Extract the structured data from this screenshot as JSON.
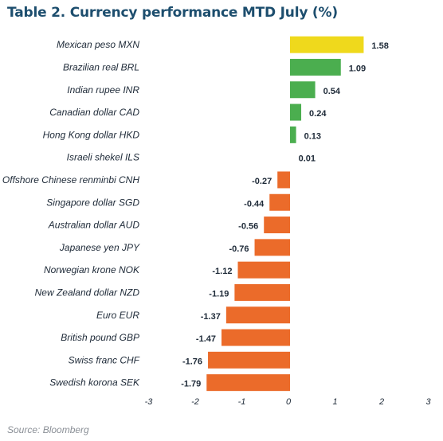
{
  "title": "Table 2. Currency performance MTD July (%)",
  "source": "Source: Bloomberg",
  "colors": {
    "highlight": "#efd91c",
    "positive": "#4bae4f",
    "negative": "#eb6b2a",
    "text": "#1e2a38",
    "title": "#1d4e6e",
    "source": "#8a8f96"
  },
  "chart_data": {
    "type": "bar",
    "orientation": "horizontal",
    "categories": [
      "Mexican peso MXN",
      "Brazilian real BRL",
      "Indian rupee INR",
      "Canadian dollar CAD",
      "Hong Kong dollar HKD",
      "Israeli shekel ILS",
      "Offshore Chinese renminbi CNH",
      "Singapore dollar SGD",
      "Australian dollar AUD",
      "Japanese yen JPY",
      "Norwegian krone NOK",
      "New Zealand dollar NZD",
      "Euro EUR",
      "British pound GBP",
      "Swiss franc CHF",
      "Swedish korona SEK"
    ],
    "values": [
      1.58,
      1.09,
      0.54,
      0.24,
      0.13,
      0.01,
      -0.27,
      -0.44,
      -0.56,
      -0.76,
      -1.12,
      -1.19,
      -1.37,
      -1.47,
      -1.76,
      -1.79
    ],
    "value_labels": [
      "1.58",
      "1.09",
      "0.54",
      "0.24",
      "0.13",
      "0.01",
      "-0.27",
      "-0.44",
      "-0.56",
      "-0.76",
      "-1.12",
      "-1.19",
      "-1.37",
      "-1.47",
      "-1.76",
      "-1.79"
    ],
    "highlight_index": 0,
    "xlim": [
      -3,
      3
    ],
    "xticks": [
      -3,
      -2,
      -1,
      0,
      1,
      2,
      3
    ],
    "xtick_labels": [
      "-3",
      "-2",
      "-1",
      "0",
      "1",
      "2",
      "3"
    ],
    "grid": false,
    "legend": "none"
  }
}
